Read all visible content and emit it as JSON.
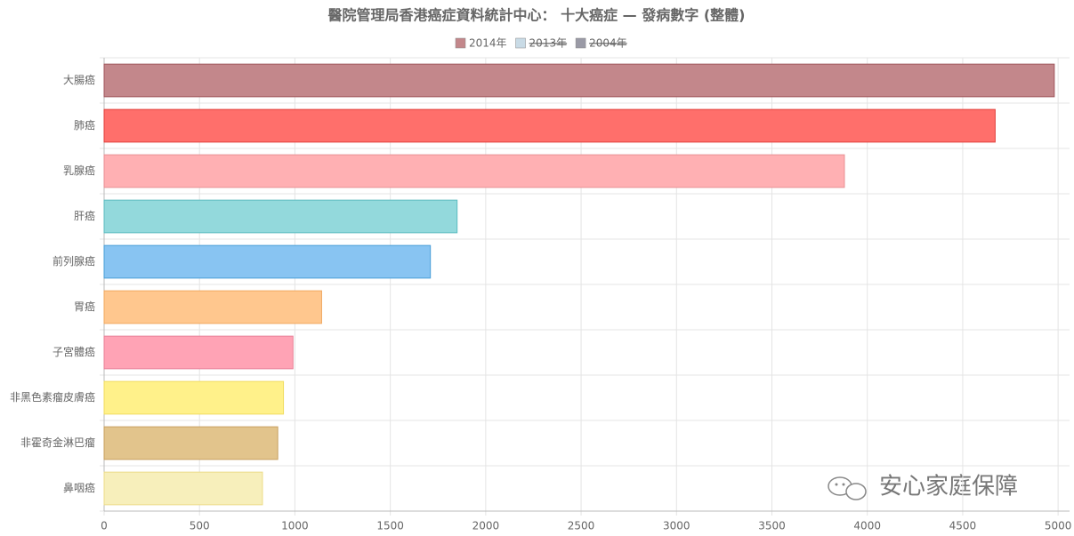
{
  "chart_data": {
    "type": "hbar",
    "title": "醫院管理局香港癌症資料統計中心： 十大癌症 — 發病數字 (整體)",
    "legend": [
      {
        "name": "2014年",
        "color": "#c3878b",
        "struck": false
      },
      {
        "name": "2013年",
        "color": "#c9dbe6",
        "struck": true
      },
      {
        "name": "2004年",
        "color": "#9a9aa6",
        "struck": true
      }
    ],
    "categories": [
      "大腸癌",
      "肺癌",
      "乳腺癌",
      "肝癌",
      "前列腺癌",
      "胃癌",
      "子宮體癌",
      "非黑色素瘤皮膚癌",
      "非霍奇金淋巴瘤",
      "鼻咽癌"
    ],
    "values": [
      4980,
      4670,
      3880,
      1850,
      1710,
      1140,
      990,
      940,
      910,
      830
    ],
    "colors": [
      "#c3878b",
      "#ff6f6b",
      "#ffb0b3",
      "#93d9dc",
      "#88c4f2",
      "#ffc78e",
      "#ffa3b5",
      "#fff18a",
      "#e2c48c",
      "#f7efbb"
    ],
    "border_colors": [
      "#a0565c",
      "#e0403c",
      "#e89094",
      "#5cbcc0",
      "#4a9fd8",
      "#f0a860",
      "#e88098",
      "#f0dc60",
      "#c8a060",
      "#ecdc88"
    ],
    "xlim": [
      0,
      5060
    ],
    "xticks": [
      0,
      500,
      1000,
      1500,
      2000,
      2500,
      3000,
      3500,
      4000,
      4500,
      5000
    ],
    "grid": true,
    "watermark": "安心家庭保障"
  }
}
